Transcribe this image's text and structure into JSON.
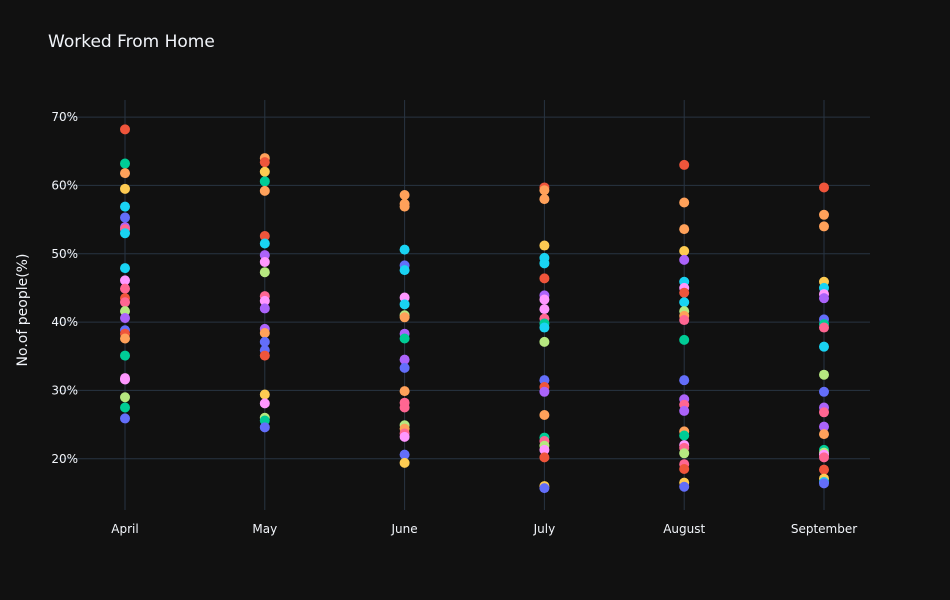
{
  "chart_data": {
    "type": "scatter",
    "title": "Worked From Home",
    "xlabel": "",
    "ylabel": "No.of people(%)",
    "categories": [
      "April",
      "May",
      "June",
      "July",
      "August",
      "September"
    ],
    "y_tick_labels": [
      "20%",
      "30%",
      "40%",
      "50%",
      "60%",
      "70%"
    ],
    "y_ticks": [
      20,
      30,
      40,
      50,
      60,
      70
    ],
    "ylim": [
      12.5,
      72.5
    ],
    "grid": true,
    "colors": [
      "#636efa",
      "#EF553B",
      "#00cc96",
      "#ab63fa",
      "#FFA15A",
      "#19d3f3",
      "#FF6692",
      "#B6E880",
      "#FF97FF",
      "#FECB52"
    ],
    "points": [
      {
        "x": "April",
        "y": 68.2,
        "color": "#EF553B"
      },
      {
        "x": "April",
        "y": 63.2,
        "color": "#00cc96"
      },
      {
        "x": "April",
        "y": 61.8,
        "color": "#FFA15A"
      },
      {
        "x": "April",
        "y": 59.5,
        "color": "#FECB52"
      },
      {
        "x": "April",
        "y": 56.9,
        "color": "#19d3f3"
      },
      {
        "x": "April",
        "y": 55.3,
        "color": "#636efa"
      },
      {
        "x": "April",
        "y": 53.9,
        "color": "#ab63fa"
      },
      {
        "x": "April",
        "y": 53.6,
        "color": "#FF6692"
      },
      {
        "x": "April",
        "y": 53.0,
        "color": "#19d3f3"
      },
      {
        "x": "April",
        "y": 47.9,
        "color": "#19d3f3"
      },
      {
        "x": "April",
        "y": 46.1,
        "color": "#FF97FF"
      },
      {
        "x": "April",
        "y": 44.9,
        "color": "#FF6692"
      },
      {
        "x": "April",
        "y": 43.5,
        "color": "#EF553B"
      },
      {
        "x": "April",
        "y": 42.9,
        "color": "#FF6692"
      },
      {
        "x": "April",
        "y": 41.6,
        "color": "#B6E880"
      },
      {
        "x": "April",
        "y": 40.6,
        "color": "#ab63fa"
      },
      {
        "x": "April",
        "y": 38.8,
        "color": "#636efa"
      },
      {
        "x": "April",
        "y": 38.3,
        "color": "#EF553B"
      },
      {
        "x": "April",
        "y": 37.6,
        "color": "#FFA15A"
      },
      {
        "x": "April",
        "y": 35.1,
        "color": "#00cc96"
      },
      {
        "x": "April",
        "y": 31.8,
        "color": "#FF97FF"
      },
      {
        "x": "April",
        "y": 31.6,
        "color": "#FF97FF"
      },
      {
        "x": "April",
        "y": 29.0,
        "color": "#B6E880"
      },
      {
        "x": "April",
        "y": 27.5,
        "color": "#00cc96"
      },
      {
        "x": "April",
        "y": 25.9,
        "color": "#636efa"
      },
      {
        "x": "May",
        "y": 64.0,
        "color": "#FFA15A"
      },
      {
        "x": "May",
        "y": 63.4,
        "color": "#EF553B"
      },
      {
        "x": "May",
        "y": 62.0,
        "color": "#FECB52"
      },
      {
        "x": "May",
        "y": 60.6,
        "color": "#00cc96"
      },
      {
        "x": "May",
        "y": 59.2,
        "color": "#FFA15A"
      },
      {
        "x": "May",
        "y": 52.6,
        "color": "#EF553B"
      },
      {
        "x": "May",
        "y": 51.5,
        "color": "#19d3f3"
      },
      {
        "x": "May",
        "y": 49.8,
        "color": "#ab63fa"
      },
      {
        "x": "May",
        "y": 48.8,
        "color": "#FF97FF"
      },
      {
        "x": "May",
        "y": 47.3,
        "color": "#B6E880"
      },
      {
        "x": "May",
        "y": 43.8,
        "color": "#FF6692"
      },
      {
        "x": "May",
        "y": 43.1,
        "color": "#FF97FF"
      },
      {
        "x": "May",
        "y": 42.0,
        "color": "#ab63fa"
      },
      {
        "x": "May",
        "y": 39.0,
        "color": "#ab63fa"
      },
      {
        "x": "May",
        "y": 38.4,
        "color": "#FFA15A"
      },
      {
        "x": "May",
        "y": 37.1,
        "color": "#636efa"
      },
      {
        "x": "May",
        "y": 35.9,
        "color": "#636efa"
      },
      {
        "x": "May",
        "y": 35.1,
        "color": "#EF553B"
      },
      {
        "x": "May",
        "y": 29.4,
        "color": "#FECB52"
      },
      {
        "x": "May",
        "y": 28.1,
        "color": "#FF97FF"
      },
      {
        "x": "May",
        "y": 26.0,
        "color": "#B6E880"
      },
      {
        "x": "May",
        "y": 25.6,
        "color": "#00cc96"
      },
      {
        "x": "May",
        "y": 24.6,
        "color": "#636efa"
      },
      {
        "x": "June",
        "y": 58.6,
        "color": "#FFA15A"
      },
      {
        "x": "June",
        "y": 57.3,
        "color": "#FFA15A"
      },
      {
        "x": "June",
        "y": 56.9,
        "color": "#FFA15A"
      },
      {
        "x": "June",
        "y": 50.6,
        "color": "#19d3f3"
      },
      {
        "x": "June",
        "y": 48.3,
        "color": "#636efa"
      },
      {
        "x": "June",
        "y": 47.6,
        "color": "#19d3f3"
      },
      {
        "x": "June",
        "y": 43.6,
        "color": "#FF97FF"
      },
      {
        "x": "June",
        "y": 42.6,
        "color": "#19d3f3"
      },
      {
        "x": "June",
        "y": 41.0,
        "color": "#B6E880"
      },
      {
        "x": "June",
        "y": 40.7,
        "color": "#FFA15A"
      },
      {
        "x": "June",
        "y": 38.3,
        "color": "#ab63fa"
      },
      {
        "x": "June",
        "y": 37.6,
        "color": "#00cc96"
      },
      {
        "x": "June",
        "y": 34.5,
        "color": "#ab63fa"
      },
      {
        "x": "June",
        "y": 33.3,
        "color": "#636efa"
      },
      {
        "x": "June",
        "y": 29.9,
        "color": "#FFA15A"
      },
      {
        "x": "June",
        "y": 28.2,
        "color": "#FF6692"
      },
      {
        "x": "June",
        "y": 27.5,
        "color": "#FF6692"
      },
      {
        "x": "June",
        "y": 24.9,
        "color": "#B6E880"
      },
      {
        "x": "June",
        "y": 24.4,
        "color": "#FFA15A"
      },
      {
        "x": "June",
        "y": 23.7,
        "color": "#FF6692"
      },
      {
        "x": "June",
        "y": 23.2,
        "color": "#FF97FF"
      },
      {
        "x": "June",
        "y": 20.6,
        "color": "#636efa"
      },
      {
        "x": "June",
        "y": 19.4,
        "color": "#FECB52"
      },
      {
        "x": "July",
        "y": 59.7,
        "color": "#EF553B"
      },
      {
        "x": "July",
        "y": 59.3,
        "color": "#FFA15A"
      },
      {
        "x": "July",
        "y": 58.0,
        "color": "#FFA15A"
      },
      {
        "x": "July",
        "y": 51.2,
        "color": "#FECB52"
      },
      {
        "x": "July",
        "y": 49.4,
        "color": "#19d3f3"
      },
      {
        "x": "July",
        "y": 48.6,
        "color": "#19d3f3"
      },
      {
        "x": "July",
        "y": 46.4,
        "color": "#EF553B"
      },
      {
        "x": "July",
        "y": 43.9,
        "color": "#ab63fa"
      },
      {
        "x": "July",
        "y": 43.3,
        "color": "#FF97FF"
      },
      {
        "x": "July",
        "y": 41.9,
        "color": "#FF97FF"
      },
      {
        "x": "July",
        "y": 40.5,
        "color": "#FF6692"
      },
      {
        "x": "July",
        "y": 39.8,
        "color": "#00cc96"
      },
      {
        "x": "July",
        "y": 39.2,
        "color": "#19d3f3"
      },
      {
        "x": "July",
        "y": 37.1,
        "color": "#B6E880"
      },
      {
        "x": "July",
        "y": 31.5,
        "color": "#636efa"
      },
      {
        "x": "July",
        "y": 30.5,
        "color": "#EF553B"
      },
      {
        "x": "July",
        "y": 29.8,
        "color": "#ab63fa"
      },
      {
        "x": "July",
        "y": 26.4,
        "color": "#FFA15A"
      },
      {
        "x": "July",
        "y": 23.1,
        "color": "#00cc96"
      },
      {
        "x": "July",
        "y": 22.6,
        "color": "#FF6692"
      },
      {
        "x": "July",
        "y": 21.9,
        "color": "#B6E880"
      },
      {
        "x": "July",
        "y": 21.3,
        "color": "#FF97FF"
      },
      {
        "x": "July",
        "y": 20.2,
        "color": "#EF553B"
      },
      {
        "x": "July",
        "y": 16.0,
        "color": "#FECB52"
      },
      {
        "x": "July",
        "y": 15.7,
        "color": "#636efa"
      },
      {
        "x": "August",
        "y": 63.0,
        "color": "#EF553B"
      },
      {
        "x": "August",
        "y": 57.5,
        "color": "#FFA15A"
      },
      {
        "x": "August",
        "y": 53.6,
        "color": "#FFA15A"
      },
      {
        "x": "August",
        "y": 50.4,
        "color": "#FECB52"
      },
      {
        "x": "August",
        "y": 49.1,
        "color": "#ab63fa"
      },
      {
        "x": "August",
        "y": 45.9,
        "color": "#19d3f3"
      },
      {
        "x": "August",
        "y": 45.0,
        "color": "#FF97FF"
      },
      {
        "x": "August",
        "y": 44.3,
        "color": "#EF553B"
      },
      {
        "x": "August",
        "y": 42.9,
        "color": "#19d3f3"
      },
      {
        "x": "August",
        "y": 41.6,
        "color": "#B6E880"
      },
      {
        "x": "August",
        "y": 40.9,
        "color": "#FFA15A"
      },
      {
        "x": "August",
        "y": 40.3,
        "color": "#FF6692"
      },
      {
        "x": "August",
        "y": 37.4,
        "color": "#00cc96"
      },
      {
        "x": "August",
        "y": 31.5,
        "color": "#636efa"
      },
      {
        "x": "August",
        "y": 28.7,
        "color": "#ab63fa"
      },
      {
        "x": "August",
        "y": 27.9,
        "color": "#FF6692"
      },
      {
        "x": "August",
        "y": 27.0,
        "color": "#ab63fa"
      },
      {
        "x": "August",
        "y": 24.0,
        "color": "#FFA15A"
      },
      {
        "x": "August",
        "y": 23.4,
        "color": "#00cc96"
      },
      {
        "x": "August",
        "y": 22.0,
        "color": "#FF97FF"
      },
      {
        "x": "August",
        "y": 21.6,
        "color": "#FF6692"
      },
      {
        "x": "August",
        "y": 20.8,
        "color": "#B6E880"
      },
      {
        "x": "August",
        "y": 19.2,
        "color": "#FF6692"
      },
      {
        "x": "August",
        "y": 18.5,
        "color": "#EF553B"
      },
      {
        "x": "August",
        "y": 16.5,
        "color": "#FECB52"
      },
      {
        "x": "August",
        "y": 15.9,
        "color": "#636efa"
      },
      {
        "x": "September",
        "y": 59.7,
        "color": "#EF553B"
      },
      {
        "x": "September",
        "y": 55.7,
        "color": "#FFA15A"
      },
      {
        "x": "September",
        "y": 54.0,
        "color": "#FFA15A"
      },
      {
        "x": "September",
        "y": 45.9,
        "color": "#FECB52"
      },
      {
        "x": "September",
        "y": 45.0,
        "color": "#19d3f3"
      },
      {
        "x": "September",
        "y": 44.1,
        "color": "#FF97FF"
      },
      {
        "x": "September",
        "y": 43.5,
        "color": "#ab63fa"
      },
      {
        "x": "September",
        "y": 40.4,
        "color": "#636efa"
      },
      {
        "x": "September",
        "y": 39.7,
        "color": "#00cc96"
      },
      {
        "x": "September",
        "y": 39.2,
        "color": "#FF6692"
      },
      {
        "x": "September",
        "y": 36.4,
        "color": "#19d3f3"
      },
      {
        "x": "September",
        "y": 32.3,
        "color": "#B6E880"
      },
      {
        "x": "September",
        "y": 29.8,
        "color": "#636efa"
      },
      {
        "x": "September",
        "y": 27.5,
        "color": "#ab63fa"
      },
      {
        "x": "September",
        "y": 26.8,
        "color": "#FF6692"
      },
      {
        "x": "September",
        "y": 24.7,
        "color": "#ab63fa"
      },
      {
        "x": "September",
        "y": 23.6,
        "color": "#FFA15A"
      },
      {
        "x": "September",
        "y": 21.3,
        "color": "#00cc96"
      },
      {
        "x": "September",
        "y": 20.9,
        "color": "#B6E880"
      },
      {
        "x": "September",
        "y": 20.6,
        "color": "#FF97FF"
      },
      {
        "x": "September",
        "y": 20.2,
        "color": "#FF6692"
      },
      {
        "x": "September",
        "y": 18.4,
        "color": "#EF553B"
      },
      {
        "x": "September",
        "y": 17.1,
        "color": "#FECB52"
      },
      {
        "x": "September",
        "y": 16.6,
        "color": "#19d3f3"
      },
      {
        "x": "September",
        "y": 16.4,
        "color": "#636efa"
      }
    ]
  }
}
